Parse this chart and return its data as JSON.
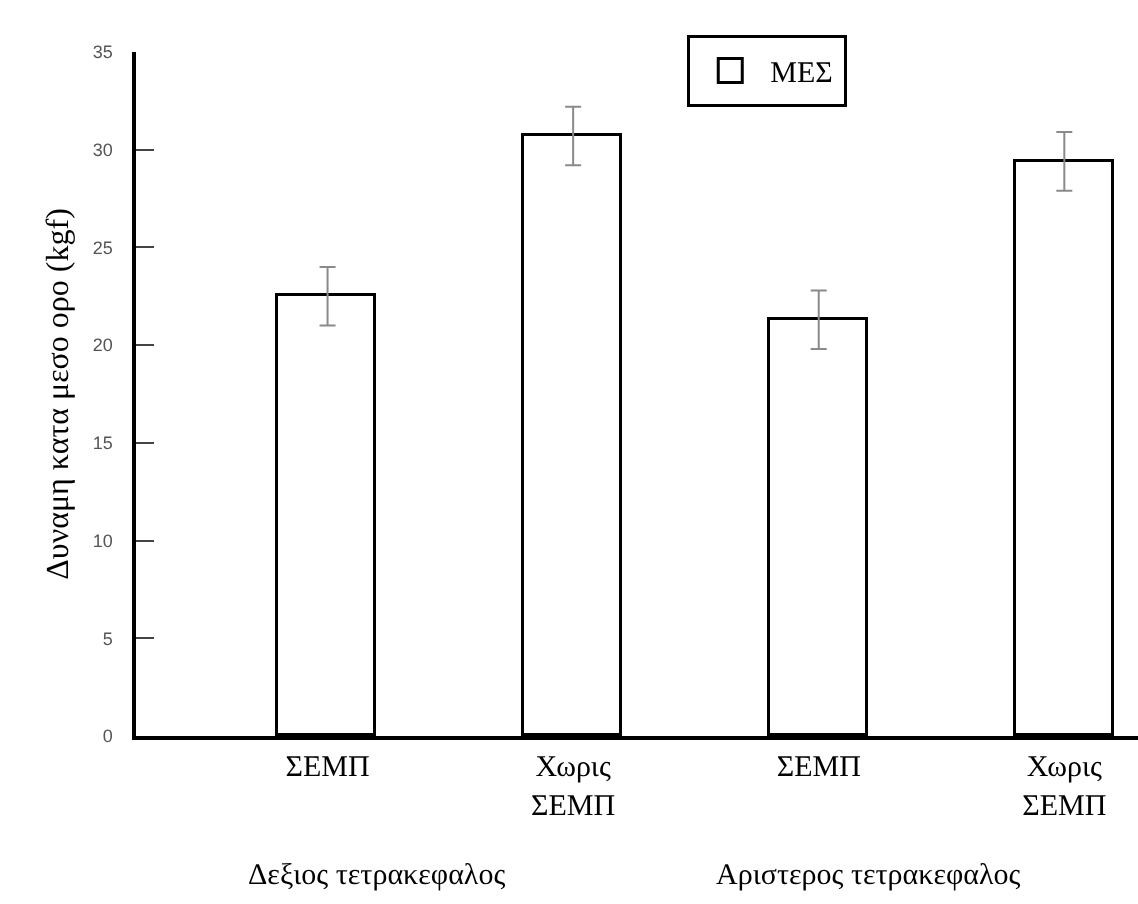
{
  "chart_data": {
    "type": "bar",
    "ylabel": "Δυναμη κατα μεσο ορο (kgf)",
    "categories": [
      "ΣΕΜΠ",
      "Χωρις ΣΕΜΠ",
      "ΣΕΜΠ",
      "Χωρις ΣΕΜΠ"
    ],
    "series": [
      {
        "name": "ΜΕΣ",
        "color": "#ffffff",
        "values": [
          22.5,
          30.7,
          21.3,
          29.4
        ],
        "errors": [
          1.5,
          1.5,
          1.5,
          1.5
        ]
      }
    ],
    "ylim": [
      0,
      35
    ],
    "yticks": [
      0,
      5,
      10,
      15,
      20,
      25,
      30,
      35
    ],
    "legend": "top",
    "annotations": [
      "Δεξιος τετρακεφαλος",
      "Αριστερος τετρακεφαλος"
    ]
  }
}
